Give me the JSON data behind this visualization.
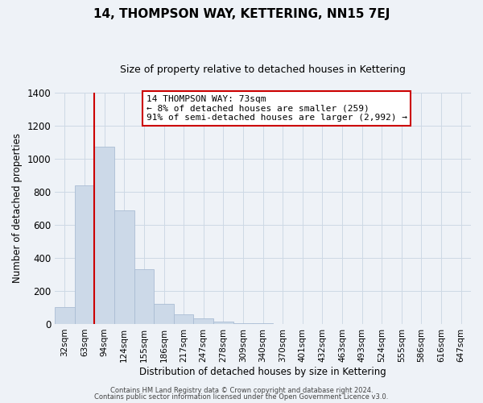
{
  "title": "14, THOMPSON WAY, KETTERING, NN15 7EJ",
  "subtitle": "Size of property relative to detached houses in Kettering",
  "xlabel": "Distribution of detached houses by size in Kettering",
  "ylabel": "Number of detached properties",
  "bar_labels": [
    "32sqm",
    "63sqm",
    "94sqm",
    "124sqm",
    "155sqm",
    "186sqm",
    "217sqm",
    "247sqm",
    "278sqm",
    "309sqm",
    "340sqm",
    "370sqm",
    "401sqm",
    "432sqm",
    "463sqm",
    "493sqm",
    "524sqm",
    "555sqm",
    "586sqm",
    "616sqm",
    "647sqm"
  ],
  "bar_values": [
    100,
    840,
    1075,
    690,
    330,
    120,
    60,
    32,
    16,
    5,
    3,
    2,
    1,
    0,
    0,
    0,
    0,
    0,
    0,
    0,
    0
  ],
  "bar_color": "#ccd9e8",
  "bar_edge_color": "#aabdd4",
  "vline_x_index": 1,
  "vline_color": "#cc0000",
  "ylim": [
    0,
    1400
  ],
  "yticks": [
    0,
    200,
    400,
    600,
    800,
    1000,
    1200,
    1400
  ],
  "annotation_title": "14 THOMPSON WAY: 73sqm",
  "annotation_line1": "← 8% of detached houses are smaller (259)",
  "annotation_line2": "91% of semi-detached houses are larger (2,992) →",
  "annotation_box_facecolor": "#ffffff",
  "annotation_box_edgecolor": "#cc0000",
  "footer_line1": "Contains HM Land Registry data © Crown copyright and database right 2024.",
  "footer_line2": "Contains public sector information licensed under the Open Government Licence v3.0.",
  "grid_color": "#cdd9e5",
  "background_color": "#eef2f7",
  "title_fontsize": 11,
  "subtitle_fontsize": 9,
  "xlabel_fontsize": 8.5,
  "ylabel_fontsize": 8.5,
  "tick_fontsize": 7.5,
  "ytick_fontsize": 8.5,
  "ann_fontsize": 8.0,
  "footer_fontsize": 6.0
}
